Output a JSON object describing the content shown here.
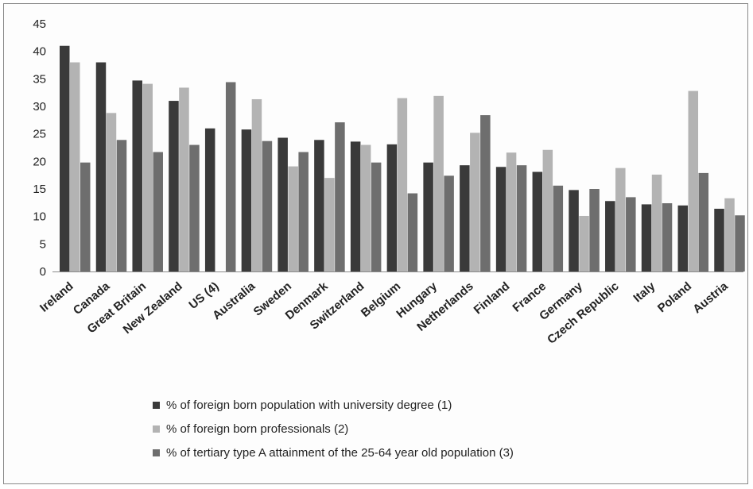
{
  "chart_data": {
    "type": "bar",
    "categories": [
      "Ireland",
      "Canada",
      "Great Britain",
      "New Zealand",
      "US (4)",
      "Australia",
      "Sweden",
      "Denmark",
      "Switzerland",
      "Belgium",
      "Hungary",
      "Netherlands",
      "Finland",
      "France",
      "Germany",
      "Czech Republic",
      "Italy",
      "Poland",
      "Austria"
    ],
    "series": [
      {
        "name": "% of foreign born population with university degree (1)",
        "color": "#3a3a3a",
        "values": [
          41,
          38,
          34.7,
          31,
          26,
          25.8,
          24.3,
          23.9,
          23.6,
          23.1,
          19.8,
          19.3,
          19,
          18.1,
          14.8,
          12.8,
          12.2,
          12,
          11.4
        ]
      },
      {
        "name": "% of foreign born professionals (2)",
        "color": "#b3b3b3",
        "values": [
          38,
          28.8,
          34.1,
          33.4,
          null,
          31.3,
          19.1,
          17,
          23,
          31.5,
          31.9,
          25.2,
          21.6,
          22.1,
          10.1,
          18.8,
          17.6,
          32.8,
          13.3
        ]
      },
      {
        "name": "% of tertiary type A attainment of the 25-64 year old population (3)",
        "color": "#6e6e6e",
        "values": [
          19.8,
          23.9,
          21.7,
          23,
          34.4,
          23.7,
          21.7,
          27.1,
          19.8,
          14.2,
          17.4,
          28.4,
          19.3,
          15.6,
          15,
          13.5,
          12.4,
          17.9,
          10.2
        ]
      }
    ],
    "ylim": [
      0,
      45
    ],
    "yticks": [
      0,
      5,
      10,
      15,
      20,
      25,
      30,
      35,
      40,
      45
    ],
    "grid": false,
    "legend_position": "bottom"
  }
}
